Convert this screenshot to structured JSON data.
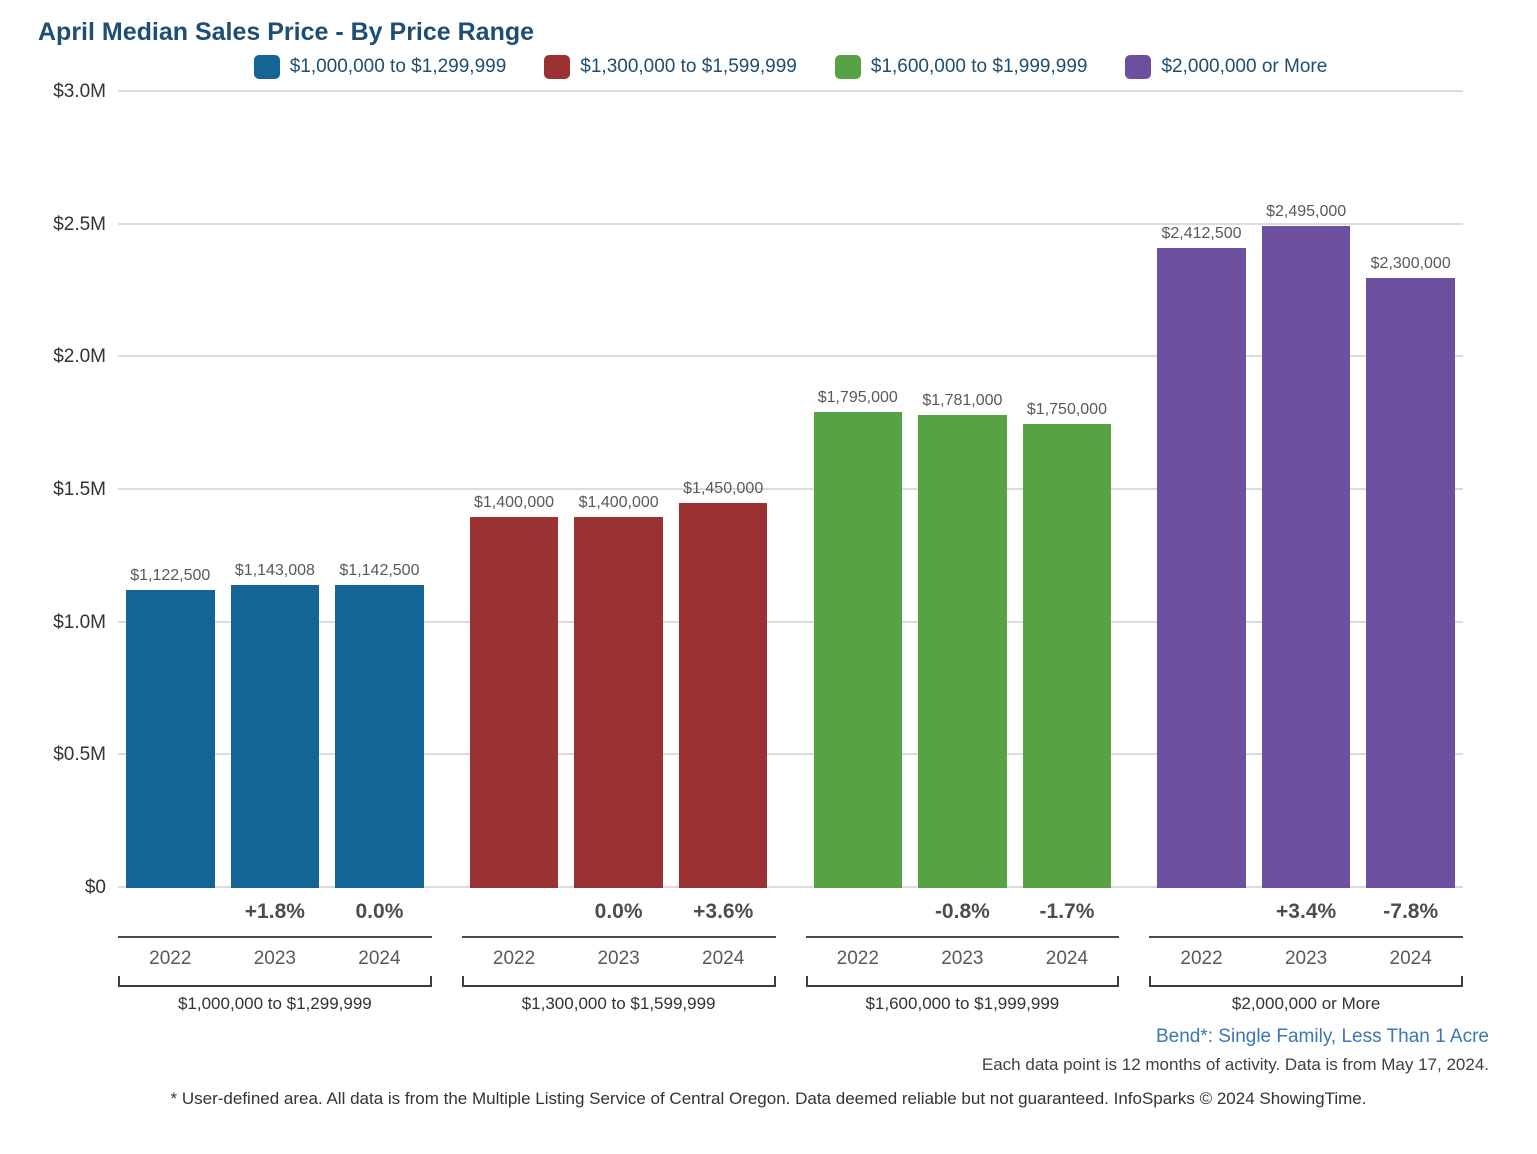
{
  "title": "April Median Sales Price - By Price Range",
  "chart_data": {
    "type": "bar",
    "title": "April Median Sales Price - By Price Range",
    "ylim": [
      0,
      3000000
    ],
    "grid": true,
    "legend_position": "top",
    "yticks": [
      {
        "value": 0,
        "label": "$0"
      },
      {
        "value": 500000,
        "label": "$0.5M"
      },
      {
        "value": 1000000,
        "label": "$1.0M"
      },
      {
        "value": 1500000,
        "label": "$1.5M"
      },
      {
        "value": 2000000,
        "label": "$2.0M"
      },
      {
        "value": 2500000,
        "label": "$2.5M"
      },
      {
        "value": 3000000,
        "label": "$3.0M"
      }
    ],
    "categories": [
      "2022",
      "2023",
      "2024"
    ],
    "groups": [
      {
        "label": "$1,000,000 to $1,299,999",
        "color": "#156496",
        "values": [
          1122500,
          1143008,
          1142500
        ],
        "value_labels": [
          "$1,122,500",
          "$1,143,008",
          "$1,142,500"
        ],
        "pct_change": [
          "",
          "+1.8%",
          "0.0%"
        ]
      },
      {
        "label": "$1,300,000 to $1,599,999",
        "color": "#9a3132",
        "values": [
          1400000,
          1400000,
          1450000
        ],
        "value_labels": [
          "$1,400,000",
          "$1,400,000",
          "$1,450,000"
        ],
        "pct_change": [
          "",
          "0.0%",
          "+3.6%"
        ]
      },
      {
        "label": "$1,600,000 to $1,999,999",
        "color": "#58a246",
        "values": [
          1795000,
          1781000,
          1750000
        ],
        "value_labels": [
          "$1,795,000",
          "$1,781,000",
          "$1,750,000"
        ],
        "pct_change": [
          "",
          "-0.8%",
          "-1.7%"
        ]
      },
      {
        "label": "$2,000,000 or More",
        "color": "#6c4f9e",
        "values": [
          2412500,
          2495000,
          2300000
        ],
        "value_labels": [
          "$2,412,500",
          "$2,495,000",
          "$2,300,000"
        ],
        "pct_change": [
          "",
          "+3.4%",
          "-7.8%"
        ]
      }
    ]
  },
  "footer": {
    "area_note": "Bend*: Single Family, Less Than 1 Acre",
    "data_note": "Each data point is 12 months of activity. Data is from May 17, 2024.",
    "disclaimer": "* User-defined area. All data is from the Multiple Listing Service of Central Oregon. Data deemed reliable but not guaranteed. InfoSparks © 2024 ShowingTime."
  }
}
